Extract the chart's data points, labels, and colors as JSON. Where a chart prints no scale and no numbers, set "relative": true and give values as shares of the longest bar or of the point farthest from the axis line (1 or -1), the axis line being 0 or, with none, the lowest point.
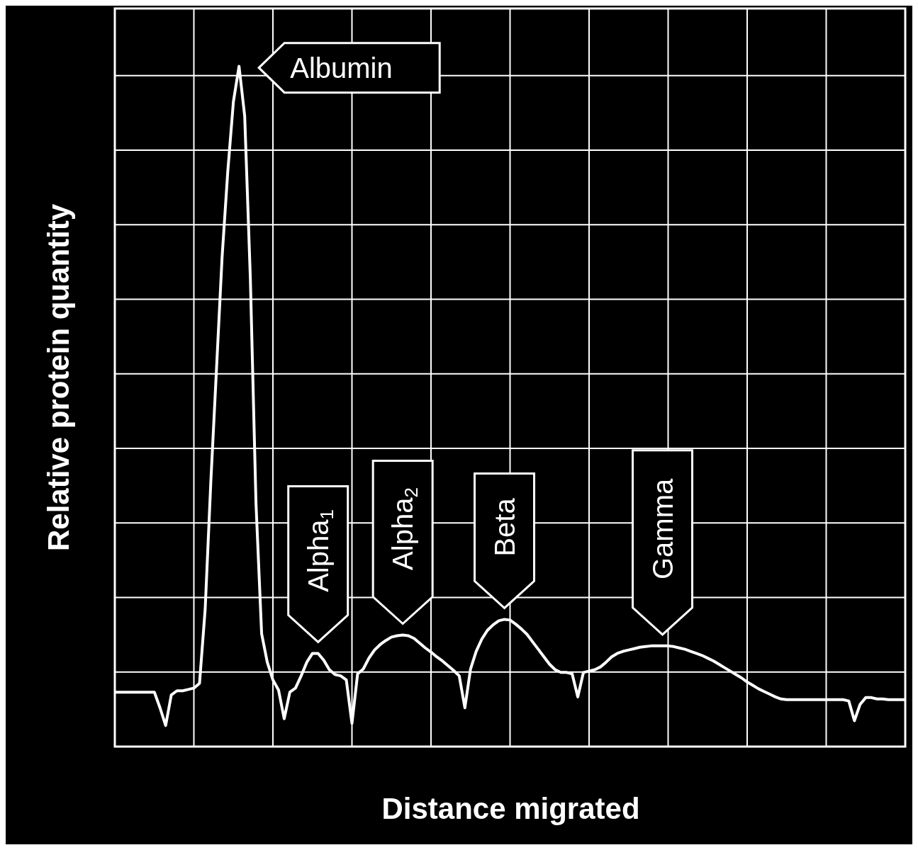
{
  "chart_data": {
    "type": "line",
    "relative": true,
    "xlabel": "Distance migrated",
    "ylabel": "Relative protein quantity",
    "grid": true,
    "marker": "none",
    "line_style": "solid",
    "annotations": [
      "Albumin",
      "Alpha$_{1}$",
      "Alpha$_{2}$",
      "Beta",
      "Gamma"
    ],
    "categories": [
      null,
      null,
      null,
      null,
      null,
      null,
      null,
      null,
      null,
      null,
      null,
      null,
      null,
      null,
      null,
      null,
      null,
      null,
      null,
      null,
      null,
      null,
      null,
      null,
      null,
      null,
      null,
      null,
      null,
      null,
      null,
      null,
      null,
      null,
      null,
      null,
      null,
      null,
      null,
      null,
      null,
      null,
      null,
      null,
      null,
      null,
      null,
      null,
      null,
      null,
      null,
      null,
      null,
      null,
      null,
      null,
      null,
      null,
      null,
      null,
      null,
      null,
      null,
      null,
      null,
      null,
      null,
      null,
      null,
      null,
      null,
      null,
      null,
      null,
      null,
      null,
      null,
      null,
      null,
      null,
      null,
      null,
      null,
      null,
      null,
      null,
      null,
      null,
      null,
      null,
      null,
      null,
      null,
      null,
      null,
      null,
      null,
      null,
      null,
      null,
      null,
      null,
      null,
      null,
      null,
      null,
      null,
      null,
      null,
      null,
      null,
      null,
      null,
      null,
      null,
      null,
      null,
      null,
      null,
      null,
      null,
      null,
      null,
      null,
      null,
      null,
      null,
      null,
      null,
      null,
      null,
      null,
      null,
      null,
      null,
      null,
      null,
      null,
      null,
      null,
      null
    ],
    "series": [
      {
        "color": "#ffffff",
        "values": [
          0.08,
          0.08,
          0.08,
          0.08,
          0.08,
          0.08,
          0.08,
          0.08,
          0.057,
          0.031,
          0.076,
          0.082,
          0.082,
          0.084,
          0.086,
          0.093,
          0.202,
          0.389,
          0.554,
          0.72,
          0.845,
          0.948,
          1.0,
          0.927,
          0.689,
          0.358,
          0.166,
          0.124,
          0.098,
          0.083,
          0.041,
          0.08,
          0.086,
          0.104,
          0.124,
          0.137,
          0.137,
          0.127,
          0.113,
          0.106,
          0.104,
          0.098,
          0.034,
          0.107,
          0.114,
          0.13,
          0.142,
          0.15,
          0.156,
          0.161,
          0.163,
          0.164,
          0.163,
          0.159,
          0.152,
          0.145,
          0.139,
          0.132,
          0.126,
          0.119,
          0.112,
          0.104,
          0.057,
          0.114,
          0.14,
          0.158,
          0.171,
          0.179,
          0.185,
          0.187,
          0.186,
          0.18,
          0.173,
          0.165,
          0.154,
          0.143,
          0.132,
          0.121,
          0.113,
          0.109,
          0.109,
          0.107,
          0.073,
          0.109,
          0.111,
          0.113,
          0.117,
          0.124,
          0.132,
          0.137,
          0.14,
          0.142,
          0.144,
          0.146,
          0.147,
          0.148,
          0.148,
          0.148,
          0.148,
          0.147,
          0.145,
          0.143,
          0.14,
          0.137,
          0.134,
          0.13,
          0.126,
          0.121,
          0.116,
          0.111,
          0.106,
          0.101,
          0.095,
          0.09,
          0.085,
          0.081,
          0.077,
          0.073,
          0.07,
          0.069,
          0.069,
          0.069,
          0.069,
          0.069,
          0.069,
          0.069,
          0.069,
          0.069,
          0.069,
          0.069,
          0.067,
          0.038,
          0.062,
          0.072,
          0.072,
          0.07,
          0.07,
          0.069,
          0.069,
          0.069,
          0.069
        ]
      }
    ]
  }
}
